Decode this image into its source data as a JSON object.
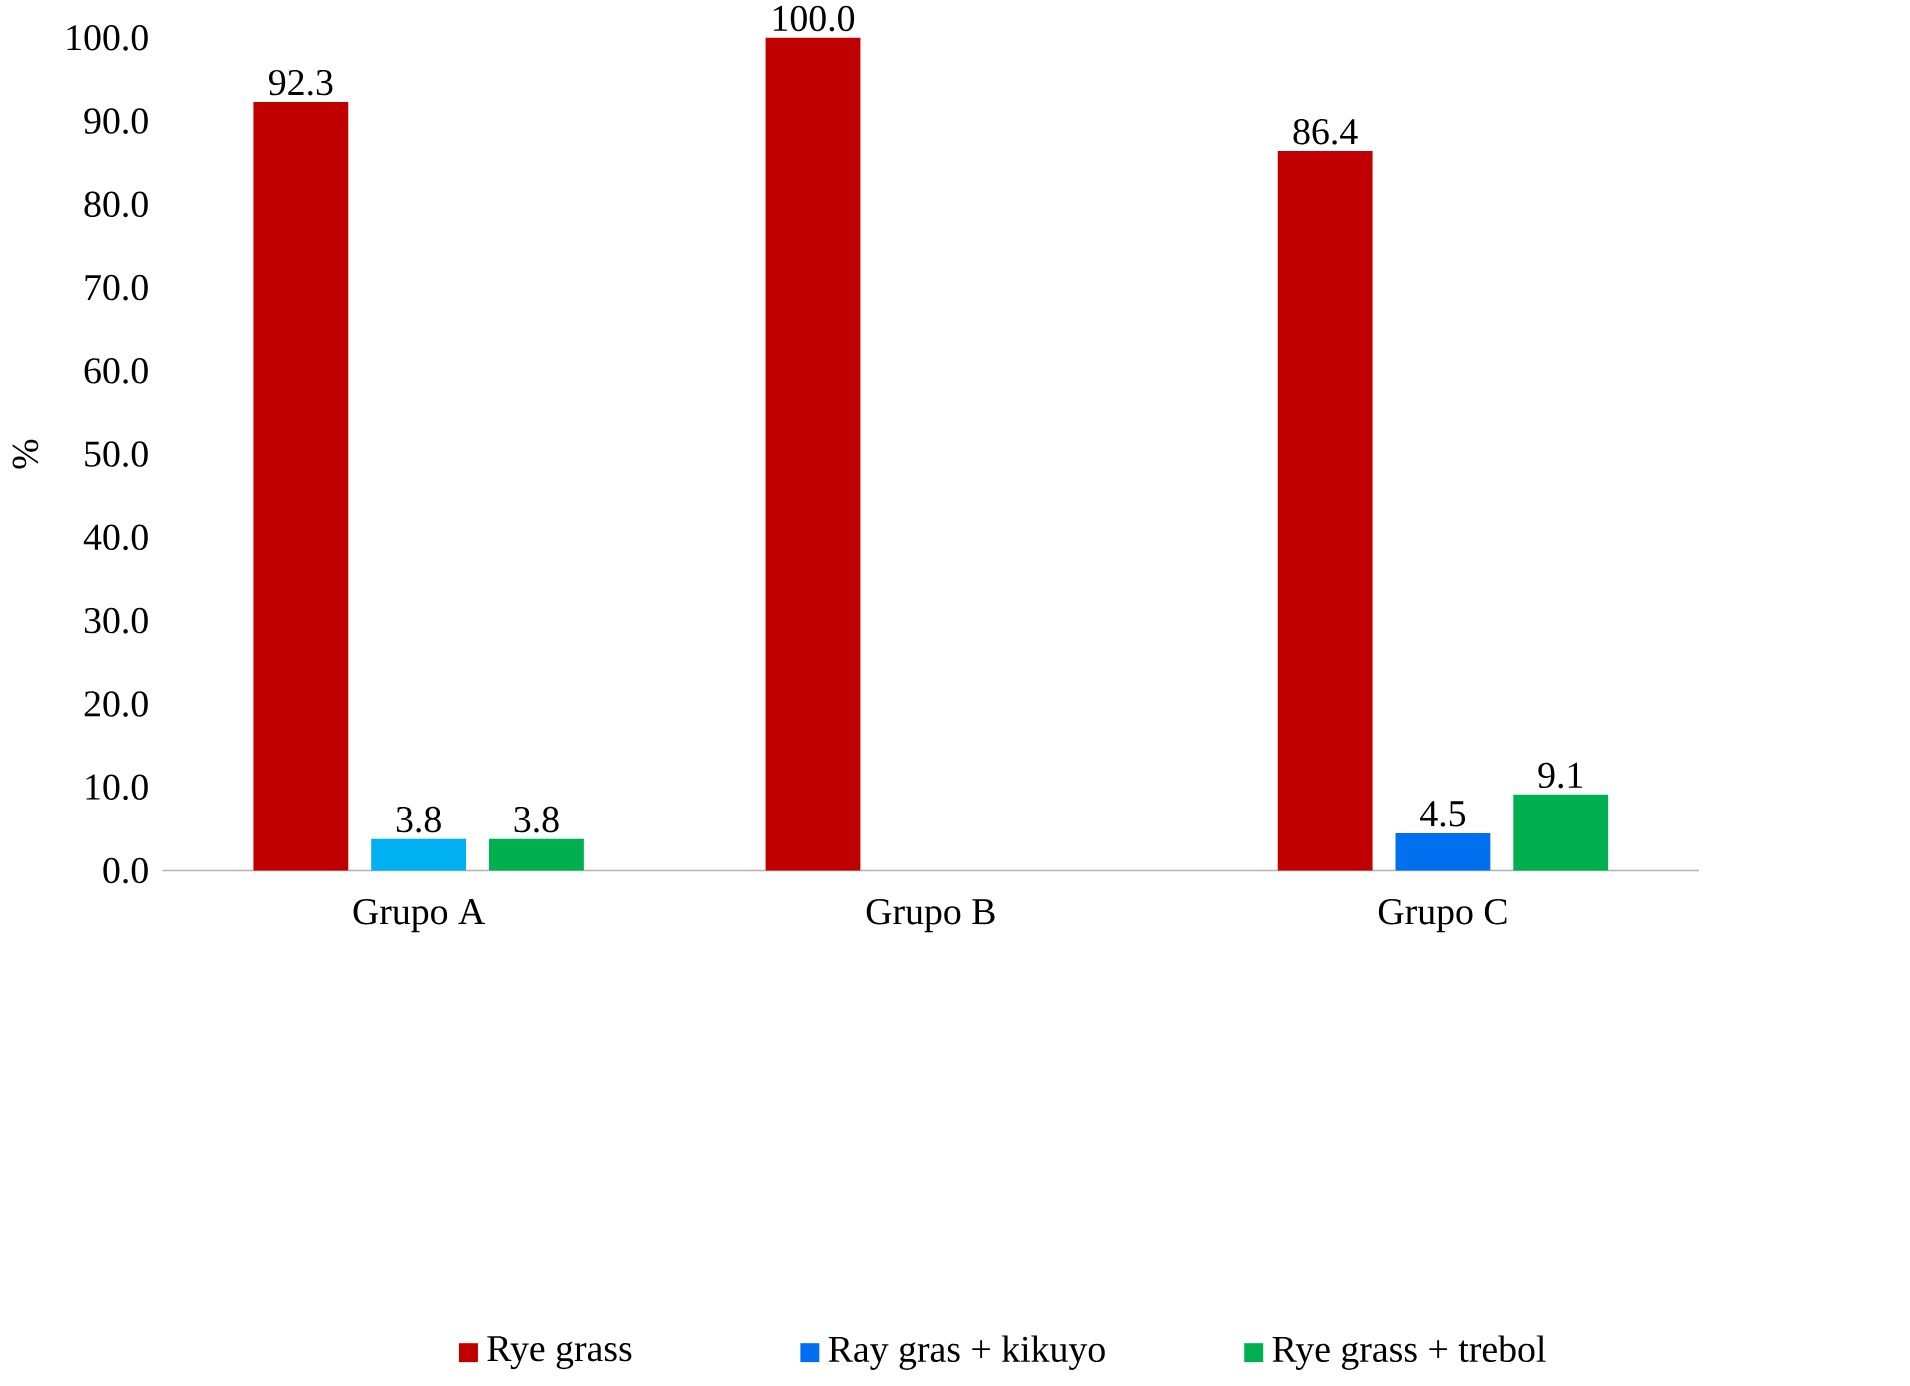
{
  "chart_data": {
    "type": "bar",
    "ylabel": "%",
    "categories": [
      "Grupo A",
      "Grupo B",
      "Grupo C"
    ],
    "ylim": [
      0,
      100
    ],
    "yticks": [
      {
        "value": 0,
        "label": "0.0"
      },
      {
        "value": 10,
        "label": "10.0"
      },
      {
        "value": 20,
        "label": "20.0"
      },
      {
        "value": 30,
        "label": "30.0"
      },
      {
        "value": 40,
        "label": "40.0"
      },
      {
        "value": 50,
        "label": "50.0"
      },
      {
        "value": 60,
        "label": "60.0"
      },
      {
        "value": 70,
        "label": "70.0"
      },
      {
        "value": 80,
        "label": "80.0"
      },
      {
        "value": 90,
        "label": "90.0"
      },
      {
        "value": 100,
        "label": "100.0"
      }
    ],
    "series": [
      {
        "name": "Rye grass",
        "color": "#c00000",
        "values": [
          92.3,
          100,
          86.4
        ],
        "value_labels": [
          "92.3",
          "100.0",
          "86.4"
        ]
      },
      {
        "name": "Ray gras + kikuyo",
        "color": "#0070f0",
        "colors": [
          "#00b0f0",
          "#0070f0",
          "#0070f0"
        ],
        "values": [
          3.8,
          null,
          4.5
        ],
        "value_labels": [
          "3.8",
          null,
          "4.5"
        ]
      },
      {
        "name": "Rye grass + trebol",
        "color": "#00b050",
        "values": [
          3.8,
          null,
          9.1
        ],
        "value_labels": [
          "3.8",
          null,
          "9.1"
        ]
      }
    ],
    "legend": "bottom",
    "grid": false
  }
}
